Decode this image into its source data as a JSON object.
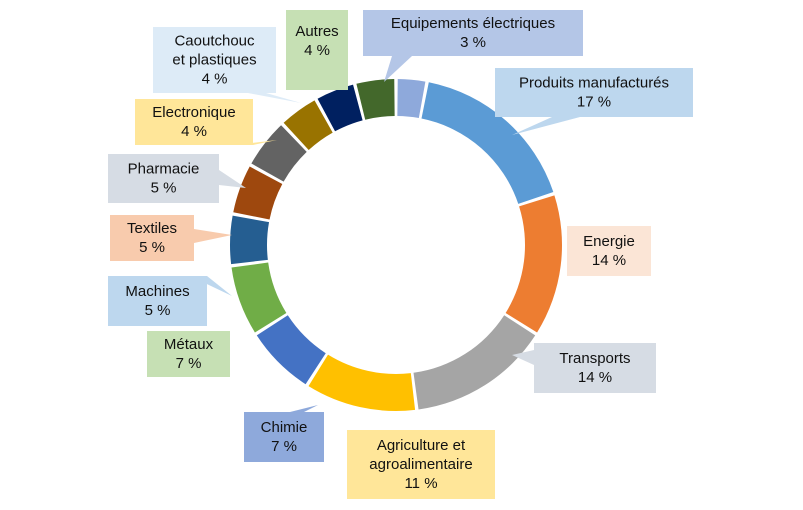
{
  "chart_data": {
    "type": "pie",
    "style": "donut",
    "title": "",
    "legend": "none",
    "value_suffix": " %",
    "slices": [
      {
        "label": "Equipements électriques",
        "value": 3,
        "color": "#8EA9DB",
        "label_bg": "#B4C6E7"
      },
      {
        "label": "Produits manufacturés",
        "value": 17,
        "color": "#5B9BD5",
        "label_bg": "#BDD7EE"
      },
      {
        "label": "Energie",
        "value": 14,
        "color": "#ED7D31",
        "label_bg": "#FBE5D6"
      },
      {
        "label": "Transports",
        "value": 14,
        "color": "#A5A5A5",
        "label_bg": "#D6DCE4"
      },
      {
        "label": "Agriculture et agroalimentaire",
        "value": 11,
        "color": "#FFC000",
        "label_bg": "#FFE699"
      },
      {
        "label": "Chimie",
        "value": 7,
        "color": "#4472C4",
        "label_bg": "#8EA9DB"
      },
      {
        "label": "Métaux",
        "value": 7,
        "color": "#70AD47",
        "label_bg": "#C6E0B4"
      },
      {
        "label": "Machines",
        "value": 5,
        "color": "#255E91",
        "label_bg": "#BDD7EE"
      },
      {
        "label": "Textiles",
        "value": 5,
        "color": "#9E480E",
        "label_bg": "#F8CBAD"
      },
      {
        "label": "Pharmacie",
        "value": 5,
        "color": "#636363",
        "label_bg": "#D6DCE4"
      },
      {
        "label": "Electronique",
        "value": 4,
        "color": "#997300",
        "label_bg": "#FFE699"
      },
      {
        "label": "Caoutchouc et plastiques",
        "value": 4,
        "color": "#002060",
        "label_bg": "#DDEBF7"
      },
      {
        "label": "Autres",
        "value": 4,
        "color": "#43682B",
        "label_bg": "#C6E0B4"
      }
    ]
  }
}
